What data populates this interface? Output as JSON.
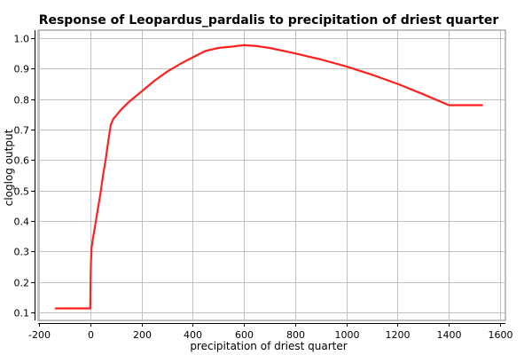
{
  "chart_data": {
    "type": "line",
    "title": "Response of Leopardus_pardalis to precipitation of driest quarter",
    "xlabel": "precipitation of driest quarter",
    "ylabel": "cloglog output",
    "xlim": [
      -200,
      1600
    ],
    "ylim": [
      0.1,
      1.0
    ],
    "x_ticks": [
      -200,
      0,
      200,
      400,
      600,
      800,
      1000,
      1200,
      1400,
      1600
    ],
    "y_ticks": [
      0.1,
      0.2,
      0.3,
      0.4,
      0.5,
      0.6,
      0.7,
      0.8,
      0.9,
      1.0
    ],
    "x_tick_labels": [
      "-200",
      "0",
      "200",
      "400",
      "600",
      "800",
      "1000",
      "1200",
      "1400",
      "1600"
    ],
    "y_tick_labels": [
      "0.1",
      "0.2",
      "0.3",
      "0.4",
      "0.5",
      "0.6",
      "0.7",
      "0.8",
      "0.9",
      "1.0"
    ],
    "grid": true,
    "legend": "none",
    "series": [
      {
        "color": "#ff2020",
        "x": [
          -135,
          0,
          1,
          2,
          5,
          10,
          20,
          30,
          40,
          50,
          60,
          70,
          80,
          90,
          100,
          120,
          150,
          200,
          250,
          300,
          350,
          400,
          450,
          500,
          550,
          600,
          650,
          700,
          800,
          900,
          1000,
          1100,
          1200,
          1300,
          1400,
          1530
        ],
        "y": [
          0.113,
          0.113,
          0.19,
          0.245,
          0.31,
          0.34,
          0.39,
          0.44,
          0.49,
          0.55,
          0.6,
          0.66,
          0.715,
          0.735,
          0.745,
          0.765,
          0.79,
          0.825,
          0.86,
          0.89,
          0.915,
          0.937,
          0.958,
          0.968,
          0.972,
          0.977,
          0.974,
          0.968,
          0.95,
          0.93,
          0.907,
          0.88,
          0.85,
          0.816,
          0.78,
          0.78
        ]
      }
    ]
  }
}
